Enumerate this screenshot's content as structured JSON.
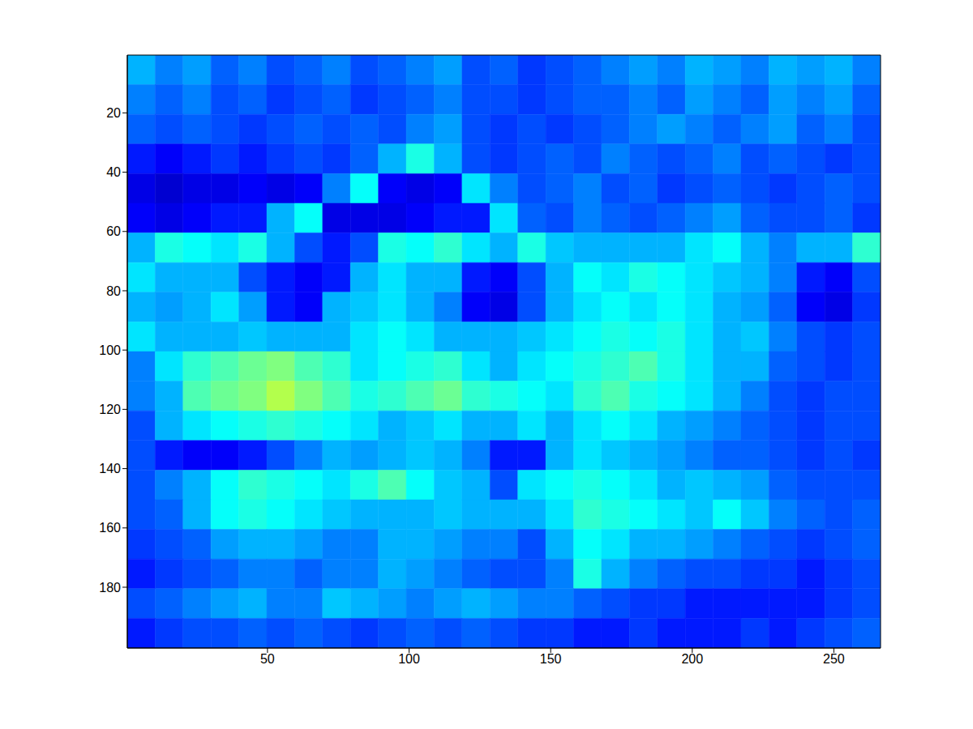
{
  "chart_data": {
    "type": "heatmap",
    "xlim": [
      0.5,
      266.5
    ],
    "ylim": [
      0.5,
      200.5
    ],
    "xticks": [
      50,
      100,
      150,
      200,
      250
    ],
    "yticks": [
      20,
      40,
      60,
      80,
      100,
      120,
      140,
      160,
      180
    ],
    "grid": false,
    "color_range": [
      0,
      1
    ],
    "cells": [
      [
        0.3,
        0.25,
        0.28,
        0.22,
        0.25,
        0.2,
        0.22,
        0.25,
        0.2,
        0.22,
        0.25,
        0.28,
        0.2,
        0.22,
        0.18,
        0.2,
        0.22,
        0.25,
        0.28,
        0.25,
        0.3,
        0.28,
        0.25,
        0.3,
        0.28,
        0.3,
        0.25
      ],
      [
        0.25,
        0.22,
        0.25,
        0.2,
        0.22,
        0.18,
        0.2,
        0.22,
        0.18,
        0.2,
        0.22,
        0.25,
        0.2,
        0.2,
        0.18,
        0.2,
        0.22,
        0.22,
        0.25,
        0.22,
        0.28,
        0.25,
        0.22,
        0.28,
        0.25,
        0.28,
        0.22
      ],
      [
        0.22,
        0.2,
        0.22,
        0.2,
        0.18,
        0.2,
        0.22,
        0.2,
        0.22,
        0.2,
        0.25,
        0.28,
        0.2,
        0.18,
        0.2,
        0.18,
        0.2,
        0.22,
        0.25,
        0.28,
        0.25,
        0.22,
        0.25,
        0.28,
        0.22,
        0.25,
        0.2
      ],
      [
        0.15,
        0.12,
        0.15,
        0.18,
        0.15,
        0.18,
        0.2,
        0.18,
        0.22,
        0.3,
        0.4,
        0.3,
        0.2,
        0.18,
        0.2,
        0.22,
        0.2,
        0.25,
        0.22,
        0.2,
        0.22,
        0.25,
        0.2,
        0.22,
        0.2,
        0.18,
        0.2
      ],
      [
        0.1,
        0.08,
        0.1,
        0.1,
        0.12,
        0.1,
        0.12,
        0.25,
        0.38,
        0.12,
        0.1,
        0.12,
        0.35,
        0.25,
        0.2,
        0.22,
        0.25,
        0.2,
        0.22,
        0.18,
        0.2,
        0.22,
        0.2,
        0.18,
        0.2,
        0.22,
        0.2
      ],
      [
        0.12,
        0.1,
        0.12,
        0.15,
        0.15,
        0.3,
        0.38,
        0.1,
        0.1,
        0.1,
        0.12,
        0.15,
        0.15,
        0.35,
        0.22,
        0.2,
        0.25,
        0.22,
        0.2,
        0.22,
        0.25,
        0.28,
        0.22,
        0.2,
        0.2,
        0.22,
        0.18
      ],
      [
        0.3,
        0.4,
        0.38,
        0.35,
        0.4,
        0.3,
        0.2,
        0.15,
        0.2,
        0.4,
        0.38,
        0.42,
        0.35,
        0.3,
        0.4,
        0.32,
        0.3,
        0.3,
        0.3,
        0.3,
        0.35,
        0.38,
        0.3,
        0.25,
        0.3,
        0.3,
        0.42
      ],
      [
        0.35,
        0.3,
        0.3,
        0.3,
        0.2,
        0.15,
        0.12,
        0.15,
        0.3,
        0.35,
        0.3,
        0.3,
        0.15,
        0.12,
        0.2,
        0.3,
        0.38,
        0.35,
        0.4,
        0.38,
        0.35,
        0.32,
        0.3,
        0.25,
        0.15,
        0.12,
        0.2
      ],
      [
        0.3,
        0.28,
        0.3,
        0.35,
        0.28,
        0.15,
        0.12,
        0.3,
        0.32,
        0.35,
        0.3,
        0.25,
        0.12,
        0.1,
        0.2,
        0.3,
        0.35,
        0.38,
        0.35,
        0.38,
        0.35,
        0.3,
        0.28,
        0.22,
        0.12,
        0.1,
        0.18
      ],
      [
        0.35,
        0.3,
        0.3,
        0.3,
        0.32,
        0.3,
        0.3,
        0.3,
        0.35,
        0.38,
        0.35,
        0.3,
        0.3,
        0.3,
        0.32,
        0.35,
        0.38,
        0.4,
        0.38,
        0.4,
        0.35,
        0.3,
        0.32,
        0.25,
        0.2,
        0.18,
        0.2
      ],
      [
        0.25,
        0.35,
        0.42,
        0.45,
        0.48,
        0.5,
        0.45,
        0.42,
        0.35,
        0.38,
        0.4,
        0.42,
        0.35,
        0.3,
        0.35,
        0.38,
        0.4,
        0.42,
        0.45,
        0.4,
        0.35,
        0.3,
        0.3,
        0.22,
        0.2,
        0.18,
        0.2
      ],
      [
        0.25,
        0.3,
        0.45,
        0.48,
        0.5,
        0.55,
        0.5,
        0.45,
        0.4,
        0.42,
        0.45,
        0.48,
        0.42,
        0.4,
        0.38,
        0.35,
        0.42,
        0.45,
        0.4,
        0.38,
        0.35,
        0.3,
        0.25,
        0.2,
        0.18,
        0.2,
        0.2
      ],
      [
        0.2,
        0.3,
        0.35,
        0.38,
        0.4,
        0.42,
        0.4,
        0.38,
        0.35,
        0.3,
        0.32,
        0.35,
        0.3,
        0.3,
        0.35,
        0.3,
        0.35,
        0.38,
        0.35,
        0.3,
        0.28,
        0.25,
        0.22,
        0.2,
        0.18,
        0.2,
        0.2
      ],
      [
        0.2,
        0.15,
        0.12,
        0.12,
        0.15,
        0.2,
        0.25,
        0.3,
        0.28,
        0.3,
        0.32,
        0.3,
        0.25,
        0.15,
        0.15,
        0.3,
        0.35,
        0.32,
        0.3,
        0.28,
        0.25,
        0.22,
        0.22,
        0.2,
        0.18,
        0.2,
        0.18
      ],
      [
        0.2,
        0.25,
        0.3,
        0.38,
        0.42,
        0.4,
        0.38,
        0.35,
        0.4,
        0.45,
        0.38,
        0.32,
        0.3,
        0.2,
        0.35,
        0.38,
        0.4,
        0.38,
        0.35,
        0.3,
        0.32,
        0.3,
        0.28,
        0.22,
        0.2,
        0.2,
        0.2
      ],
      [
        0.2,
        0.22,
        0.3,
        0.38,
        0.4,
        0.38,
        0.35,
        0.32,
        0.3,
        0.3,
        0.3,
        0.32,
        0.3,
        0.3,
        0.3,
        0.35,
        0.42,
        0.4,
        0.38,
        0.35,
        0.32,
        0.38,
        0.32,
        0.25,
        0.22,
        0.2,
        0.22
      ],
      [
        0.18,
        0.2,
        0.22,
        0.28,
        0.3,
        0.3,
        0.28,
        0.25,
        0.25,
        0.3,
        0.3,
        0.28,
        0.25,
        0.25,
        0.2,
        0.3,
        0.38,
        0.35,
        0.3,
        0.3,
        0.28,
        0.25,
        0.22,
        0.2,
        0.18,
        0.2,
        0.22
      ],
      [
        0.15,
        0.18,
        0.2,
        0.22,
        0.25,
        0.25,
        0.22,
        0.25,
        0.25,
        0.3,
        0.28,
        0.25,
        0.22,
        0.2,
        0.2,
        0.25,
        0.4,
        0.3,
        0.25,
        0.22,
        0.2,
        0.2,
        0.18,
        0.18,
        0.15,
        0.18,
        0.2
      ],
      [
        0.2,
        0.22,
        0.25,
        0.28,
        0.3,
        0.25,
        0.25,
        0.32,
        0.3,
        0.28,
        0.25,
        0.28,
        0.3,
        0.28,
        0.25,
        0.25,
        0.22,
        0.2,
        0.18,
        0.18,
        0.15,
        0.15,
        0.15,
        0.15,
        0.15,
        0.18,
        0.2
      ],
      [
        0.15,
        0.18,
        0.2,
        0.2,
        0.22,
        0.2,
        0.22,
        0.2,
        0.18,
        0.2,
        0.22,
        0.2,
        0.22,
        0.2,
        0.18,
        0.18,
        0.15,
        0.15,
        0.18,
        0.15,
        0.15,
        0.15,
        0.18,
        0.15,
        0.18,
        0.2,
        0.22
      ]
    ]
  }
}
